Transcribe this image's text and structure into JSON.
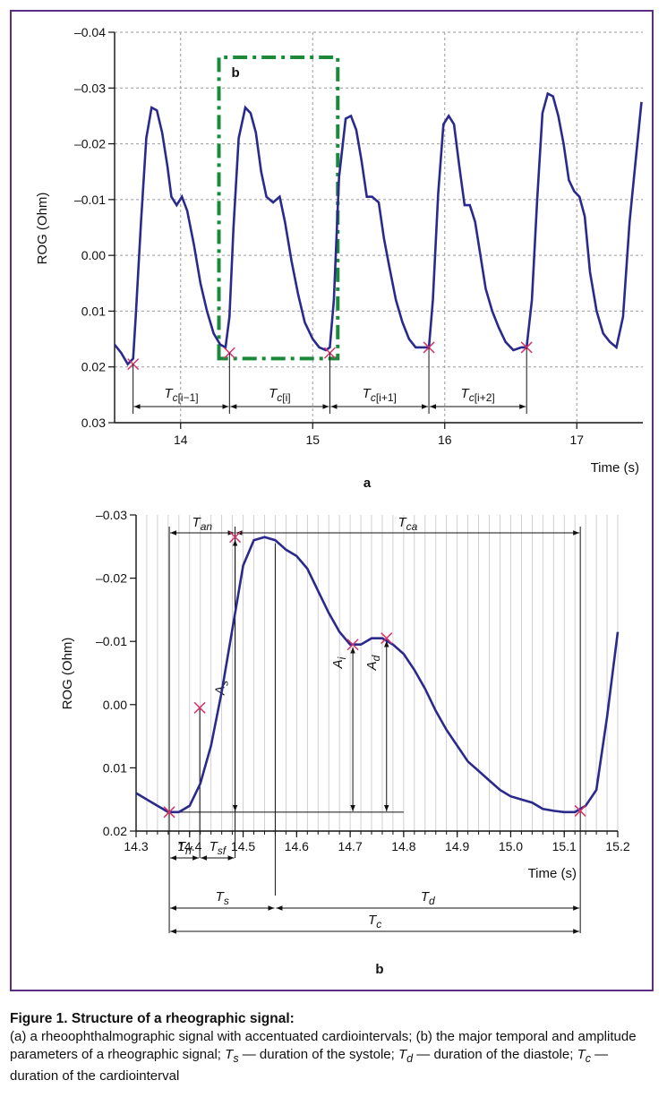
{
  "chart_data": [
    {
      "type": "line",
      "panel_label": "a",
      "title": "",
      "xlabel": "Time (s)",
      "ylabel": "ROG (Ohm)",
      "xlim": [
        13.5,
        17.5
      ],
      "ylim": [
        0.03,
        -0.04
      ],
      "x_ticks": [
        "14",
        "15",
        "16",
        "17"
      ],
      "y_ticks": [
        "-0.04",
        "-0.03",
        "-0.02",
        "-0.01",
        "0.00",
        "0.01",
        "0.02",
        "0.03"
      ],
      "grid": "dashed",
      "series_color": "#2a2a8c",
      "series": [
        {
          "x": [
            13.5,
            13.55,
            13.6,
            13.64,
            13.66,
            13.7,
            13.74,
            13.78,
            13.82,
            13.86,
            13.9,
            13.93,
            13.97,
            14.01,
            14.05,
            14.1,
            14.15,
            14.2,
            14.25,
            14.3,
            14.34,
            14.37,
            14.4,
            14.44,
            14.49,
            14.53,
            14.57,
            14.61,
            14.65,
            14.7,
            14.75,
            14.79,
            14.84,
            14.89,
            14.94,
            15.0,
            15.05,
            15.1,
            15.13,
            15.16,
            15.2,
            15.25,
            15.29,
            15.33,
            15.37,
            15.41,
            15.45,
            15.5,
            15.54,
            15.58,
            15.63,
            15.68,
            15.73,
            15.78,
            15.83,
            15.88,
            15.91,
            15.95,
            15.99,
            16.03,
            16.07,
            16.11,
            16.15,
            16.19,
            16.23,
            16.27,
            16.31,
            16.36,
            16.41,
            16.46,
            16.52,
            16.58,
            16.62,
            16.66,
            16.7,
            16.74,
            16.78,
            16.82,
            16.86,
            16.9,
            16.94,
            16.98,
            17.02,
            17.06,
            17.1,
            17.15,
            17.2,
            17.25,
            17.3,
            17.35,
            17.4,
            17.45,
            17.49
          ],
          "y": [
            0.016,
            0.0175,
            0.0195,
            0.0185,
            0.011,
            -0.006,
            -0.021,
            -0.0265,
            -0.026,
            -0.022,
            -0.016,
            -0.0105,
            -0.009,
            -0.0105,
            -0.008,
            -0.002,
            0.005,
            0.01,
            0.014,
            0.016,
            0.0165,
            0.011,
            -0.005,
            -0.021,
            -0.0265,
            -0.0255,
            -0.022,
            -0.015,
            -0.0105,
            -0.0095,
            -0.0105,
            -0.006,
            0.001,
            0.007,
            0.012,
            0.015,
            0.0165,
            0.017,
            0.0165,
            0.008,
            -0.014,
            -0.0245,
            -0.025,
            -0.0225,
            -0.017,
            -0.0105,
            -0.0105,
            -0.0095,
            -0.003,
            0.002,
            0.008,
            0.012,
            0.015,
            0.0165,
            0.0165,
            0.0165,
            0.008,
            -0.011,
            -0.0235,
            -0.025,
            -0.0235,
            -0.016,
            -0.009,
            -0.009,
            -0.006,
            0.0,
            0.006,
            0.01,
            0.013,
            0.0155,
            0.017,
            0.0165,
            0.0165,
            0.008,
            -0.01,
            -0.0255,
            -0.029,
            -0.0285,
            -0.025,
            -0.02,
            -0.0135,
            -0.0115,
            -0.0105,
            -0.007,
            0.003,
            0.01,
            0.014,
            0.0155,
            0.0165,
            0.011,
            -0.006,
            -0.018,
            -0.0275
          ]
        }
      ],
      "markers": [
        [
          13.64,
          0.0195
        ],
        [
          14.37,
          0.0175
        ],
        [
          15.13,
          0.0175
        ],
        [
          15.88,
          0.0165
        ],
        [
          16.62,
          0.0165
        ]
      ],
      "box_label": "b",
      "box_x": [
        14.29,
        15.19
      ],
      "box_y": [
        0.0185,
        -0.0355
      ],
      "box_color": "#1a8a3a",
      "interval_labels": [
        {
          "main": "T",
          "sub": "c",
          "idx": "[i−1]"
        },
        {
          "main": "T",
          "sub": "c",
          "idx": "[i]"
        },
        {
          "main": "T",
          "sub": "c",
          "idx": "[i+1]"
        },
        {
          "main": "T",
          "sub": "c",
          "idx": "[i+2]"
        }
      ]
    },
    {
      "type": "line",
      "panel_label": "b",
      "title": "",
      "xlabel": "Time (s)",
      "ylabel": "ROG (Ohm)",
      "xlim": [
        14.3,
        15.2
      ],
      "ylim": [
        0.02,
        -0.03
      ],
      "x_ticks": [
        "14.3",
        "14.4",
        "14.5",
        "14.6",
        "14.7",
        "14.8",
        "14.9",
        "15.0",
        "15.1",
        "15.2"
      ],
      "y_ticks": [
        "-0.03",
        "-0.02",
        "-0.01",
        "0.00",
        "0.01",
        "0.02"
      ],
      "grid": "vertical-minor",
      "series_color": "#2a2a8c",
      "series": [
        {
          "x": [
            14.3,
            14.33,
            14.36,
            14.38,
            14.4,
            14.42,
            14.44,
            14.46,
            14.48,
            14.5,
            14.52,
            14.54,
            14.56,
            14.58,
            14.6,
            14.62,
            14.64,
            14.66,
            14.68,
            14.7,
            14.72,
            14.74,
            14.76,
            14.78,
            14.8,
            14.82,
            14.84,
            14.86,
            14.88,
            14.9,
            14.92,
            14.94,
            14.96,
            14.98,
            15.0,
            15.02,
            15.04,
            15.06,
            15.08,
            15.1,
            15.12,
            15.14,
            15.16,
            15.18,
            15.2
          ],
          "y": [
            0.014,
            0.0155,
            0.017,
            0.017,
            0.016,
            0.0125,
            0.0065,
            -0.002,
            -0.012,
            -0.022,
            -0.026,
            -0.0265,
            -0.026,
            -0.0245,
            -0.0235,
            -0.0215,
            -0.018,
            -0.0145,
            -0.0115,
            -0.0095,
            -0.0095,
            -0.0105,
            -0.0105,
            -0.0095,
            -0.008,
            -0.0055,
            -0.0025,
            0.001,
            0.004,
            0.0065,
            0.009,
            0.0105,
            0.012,
            0.0135,
            0.0145,
            0.015,
            0.0155,
            0.0165,
            0.0168,
            0.017,
            0.017,
            0.016,
            0.0135,
            0.002,
            -0.0115
          ]
        }
      ],
      "markers": [
        [
          14.362,
          0.017
        ],
        [
          14.419,
          0.0005
        ],
        [
          14.485,
          -0.0265
        ],
        [
          14.705,
          -0.0095
        ],
        [
          14.768,
          -0.0105
        ],
        [
          15.13,
          0.0168
        ]
      ],
      "labels_top": [
        {
          "main": "T",
          "sub": "an"
        },
        {
          "main": "T",
          "sub": "ca"
        }
      ],
      "amplitude_labels": [
        {
          "main": "A",
          "sub": "s"
        },
        {
          "main": "A",
          "sub": "i"
        },
        {
          "main": "A",
          "sub": "d"
        }
      ],
      "labels_bottom": [
        {
          "main": "T",
          "sub": "rf"
        },
        {
          "main": "T",
          "sub": "sf"
        },
        {
          "main": "T",
          "sub": "s"
        },
        {
          "main": "T",
          "sub": "d"
        },
        {
          "main": "T",
          "sub": "c"
        }
      ]
    }
  ],
  "caption": {
    "title": "Figure 1. Structure of a rheographic signal:",
    "text_a": "(a) a rheoophthalmographic signal with accentuated cardiointervals; (b) the major temporal and amplitude parameters of a rheographic signal;",
    "ts_main": "T",
    "ts_sub": "s",
    "ts_text": " — duration of the systole;",
    "td_main": "T",
    "td_sub": "d",
    "td_text": " — duration of the diastole;",
    "tc_main": "T",
    "tc_sub": "c",
    "tc_text": " — duration of the cardiointerval"
  }
}
